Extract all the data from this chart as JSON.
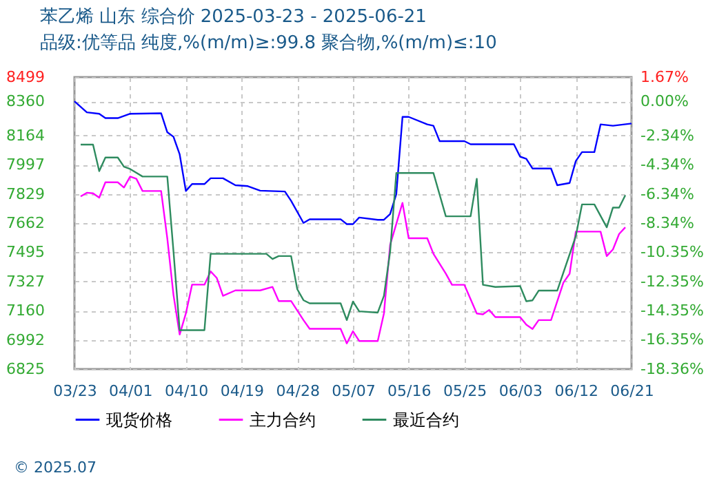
{
  "chart_data": {
    "type": "line",
    "title": "苯乙烯 山东 综合价 2025-03-23 - 2025-06-21",
    "subtitle": "品级:优等品 纯度,%(m/m)≥:99.8 聚合物,%(m/m)≤:10",
    "annotations": [
      "© 2025.07"
    ],
    "xlim": [
      "2025-03-23",
      "2025-06-21"
    ],
    "xticks": [
      {
        "value": "2025-03-23",
        "label": "03/23"
      },
      {
        "value": "2025-04-01",
        "label": "04/01"
      },
      {
        "value": "2025-04-10",
        "label": "04/10"
      },
      {
        "value": "2025-04-19",
        "label": "04/19"
      },
      {
        "value": "2025-04-28",
        "label": "04/28"
      },
      {
        "value": "2025-05-07",
        "label": "05/07"
      },
      {
        "value": "2025-05-16",
        "label": "05/16"
      },
      {
        "value": "2025-05-25",
        "label": "05/25"
      },
      {
        "value": "2025-06-03",
        "label": "06/03"
      },
      {
        "value": "2025-06-12",
        "label": "06/12"
      },
      {
        "value": "2025-06-21",
        "label": "06/21"
      }
    ],
    "ylim": [
      6825,
      8499
    ],
    "yticks": [
      6825,
      6992,
      7160,
      7327,
      7495,
      7662,
      7829,
      7997,
      8164,
      8360,
      8499
    ],
    "y2lim": [
      -18.36,
      1.67
    ],
    "y2ticks": [
      {
        "value": -18.36,
        "label": "-18.36%"
      },
      {
        "value": -16.35,
        "label": "-16.35%"
      },
      {
        "value": -14.35,
        "label": "-14.35%"
      },
      {
        "value": -12.35,
        "label": "-12.35%"
      },
      {
        "value": -10.35,
        "label": "-10.35%"
      },
      {
        "value": -8.34,
        "label": "-8.34%"
      },
      {
        "value": -6.34,
        "label": "-6.34%"
      },
      {
        "value": -4.34,
        "label": "-4.34%"
      },
      {
        "value": -2.34,
        "label": "-2.34%"
      },
      {
        "value": 0,
        "label": "0.00%"
      },
      {
        "value": 1.67,
        "label": "1.67%"
      }
    ],
    "grid": true,
    "legend": "bottom",
    "marker": "none",
    "line_style": "solid",
    "series": [
      {
        "name": "现货价格",
        "color": "#0000ff",
        "x": [
          "2025-03-23",
          "2025-03-25",
          "2025-03-27",
          "2025-03-28",
          "2025-03-30",
          "2025-04-01",
          "2025-04-06",
          "2025-04-07",
          "2025-04-08",
          "2025-04-09",
          "2025-04-10",
          "2025-04-11",
          "2025-04-13",
          "2025-04-14",
          "2025-04-16",
          "2025-04-18",
          "2025-04-20",
          "2025-04-22",
          "2025-04-26",
          "2025-04-27",
          "2025-04-29",
          "2025-04-30",
          "2025-05-05",
          "2025-05-06",
          "2025-05-07",
          "2025-05-08",
          "2025-05-11",
          "2025-05-12",
          "2025-05-13",
          "2025-05-14",
          "2025-05-15",
          "2025-05-16",
          "2025-05-19",
          "2025-05-20",
          "2025-05-21",
          "2025-05-25",
          "2025-05-26",
          "2025-06-02",
          "2025-06-03",
          "2025-06-04",
          "2025-06-05",
          "2025-06-08",
          "2025-06-09",
          "2025-06-11",
          "2025-06-12",
          "2025-06-13",
          "2025-06-15",
          "2025-06-16",
          "2025-06-18",
          "2025-06-21"
        ],
        "values": [
          8360,
          8297,
          8289,
          8264,
          8264,
          8289,
          8292,
          8183,
          8157,
          8056,
          7846,
          7886,
          7886,
          7919,
          7919,
          7879,
          7874,
          7848,
          7843,
          7790,
          7663,
          7684,
          7684,
          7656,
          7656,
          7694,
          7681,
          7681,
          7714,
          7828,
          8271,
          8271,
          8228,
          8220,
          8132,
          8132,
          8114,
          8114,
          8043,
          8031,
          7975,
          7975,
          7879,
          7892,
          8018,
          8069,
          8069,
          8228,
          8220,
          8233
        ]
      },
      {
        "name": "主力合约",
        "color": "#ff00ff",
        "x": [
          "2025-03-24",
          "2025-03-25",
          "2025-03-26",
          "2025-03-27",
          "2025-03-28",
          "2025-03-30",
          "2025-03-31",
          "2025-04-01",
          "2025-04-02",
          "2025-04-03",
          "2025-04-06",
          "2025-04-07",
          "2025-04-08",
          "2025-04-09",
          "2025-04-10",
          "2025-04-11",
          "2025-04-13",
          "2025-04-14",
          "2025-04-15",
          "2025-04-16",
          "2025-04-18",
          "2025-04-22",
          "2025-04-24",
          "2025-04-25",
          "2025-04-27",
          "2025-04-29",
          "2025-04-30",
          "2025-05-05",
          "2025-05-06",
          "2025-05-07",
          "2025-05-08",
          "2025-05-11",
          "2025-05-12",
          "2025-05-13",
          "2025-05-15",
          "2025-05-16",
          "2025-05-19",
          "2025-05-20",
          "2025-05-22",
          "2025-05-23",
          "2025-05-25",
          "2025-05-27",
          "2025-05-28",
          "2025-05-29",
          "2025-05-30",
          "2025-06-03",
          "2025-06-04",
          "2025-06-05",
          "2025-06-06",
          "2025-06-08",
          "2025-06-10",
          "2025-06-11",
          "2025-06-12",
          "2025-06-16",
          "2025-06-17",
          "2025-06-18",
          "2025-06-19",
          "2025-06-20"
        ],
        "values": [
          7815,
          7836,
          7833,
          7808,
          7896,
          7896,
          7866,
          7929,
          7916,
          7846,
          7846,
          7575,
          7250,
          7023,
          7144,
          7309,
          7309,
          7385,
          7347,
          7245,
          7276,
          7276,
          7296,
          7215,
          7215,
          7106,
          7056,
          7056,
          6972,
          7042,
          6986,
          6986,
          7144,
          7537,
          7778,
          7575,
          7575,
          7486,
          7372,
          7308,
          7308,
          7144,
          7139,
          7164,
          7123,
          7123,
          7080,
          7055,
          7106,
          7106,
          7321,
          7372,
          7613,
          7613,
          7473,
          7511,
          7600,
          7638
        ]
      },
      {
        "name": "最近合约",
        "color": "#2e8b5f",
        "x": [
          "2025-03-24",
          "2025-03-26",
          "2025-03-27",
          "2025-03-28",
          "2025-03-30",
          "2025-03-31",
          "2025-04-01",
          "2025-04-03",
          "2025-04-07",
          "2025-04-08",
          "2025-04-09",
          "2025-04-13",
          "2025-04-14",
          "2025-04-23",
          "2025-04-24",
          "2025-04-25",
          "2025-04-27",
          "2025-04-28",
          "2025-04-29",
          "2025-04-30",
          "2025-05-05",
          "2025-05-06",
          "2025-05-07",
          "2025-05-08",
          "2025-05-11",
          "2025-05-12",
          "2025-05-13",
          "2025-05-14",
          "2025-05-20",
          "2025-05-22",
          "2025-05-26",
          "2025-05-27",
          "2025-05-28",
          "2025-05-30",
          "2025-06-03",
          "2025-06-04",
          "2025-06-05",
          "2025-06-06",
          "2025-06-09",
          "2025-06-12",
          "2025-06-13",
          "2025-06-15",
          "2025-06-17",
          "2025-06-18",
          "2025-06-19",
          "2025-06-20"
        ],
        "values": [
          8112,
          8112,
          7960,
          8038,
          8038,
          7985,
          7972,
          7929,
          7929,
          7500,
          7048,
          7048,
          7486,
          7486,
          7456,
          7473,
          7473,
          7283,
          7220,
          7202,
          7202,
          7106,
          7212,
          7156,
          7149,
          7245,
          7498,
          7949,
          7949,
          7701,
          7701,
          7916,
          7308,
          7296,
          7301,
          7214,
          7219,
          7275,
          7275,
          7587,
          7769,
          7769,
          7638,
          7751,
          7751,
          7822
        ]
      }
    ]
  }
}
